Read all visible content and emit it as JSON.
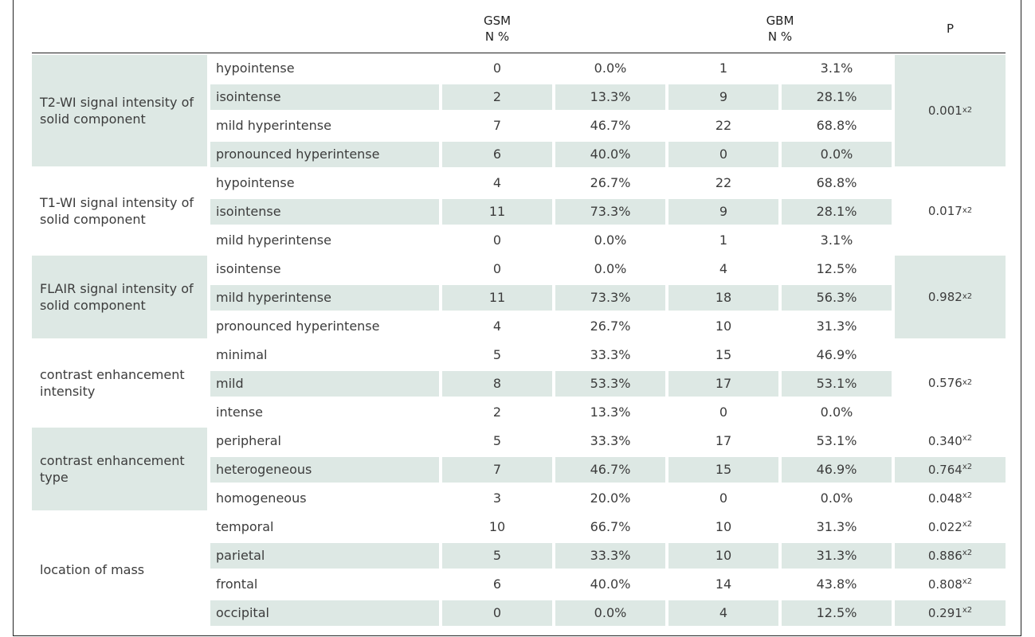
{
  "header": {
    "gsm_title": "GSM",
    "gsm_sub": "N %",
    "gbm_title": "GBM",
    "gbm_sub": "N %",
    "p_title": "P"
  },
  "chi_sup": "x2",
  "groups": [
    {
      "label": "T2-WI signal intensity of solid component",
      "shaded": true,
      "p": "0.001",
      "rows": [
        {
          "label": "hypointense",
          "n1": "0",
          "p1": "0.0%",
          "n2": "1",
          "p2": "3.1%"
        },
        {
          "label": "isointense",
          "n1": "2",
          "p1": "13.3%",
          "n2": "9",
          "p2": "28.1%"
        },
        {
          "label": "mild hyperintense",
          "n1": "7",
          "p1": "46.7%",
          "n2": "22",
          "p2": "68.8%"
        },
        {
          "label": "pronounced hyperintense",
          "n1": "6",
          "p1": "40.0%",
          "n2": "0",
          "p2": "0.0%"
        }
      ]
    },
    {
      "label": "T1-WI signal intensity of solid component",
      "shaded": false,
      "p": "0.017",
      "rows": [
        {
          "label": "hypointense",
          "n1": "4",
          "p1": "26.7%",
          "n2": "22",
          "p2": "68.8%"
        },
        {
          "label": "isointense",
          "n1": "11",
          "p1": "73.3%",
          "n2": "9",
          "p2": "28.1%"
        },
        {
          "label": "mild hyperintense",
          "n1": "0",
          "p1": "0.0%",
          "n2": "1",
          "p2": "3.1%"
        }
      ]
    },
    {
      "label": "FLAIR signal intensity of solid component",
      "shaded": true,
      "p": "0.982",
      "rows": [
        {
          "label": "isointense",
          "n1": "0",
          "p1": "0.0%",
          "n2": "4",
          "p2": "12.5%"
        },
        {
          "label": "mild hyperintense",
          "n1": "11",
          "p1": "73.3%",
          "n2": "18",
          "p2": "56.3%"
        },
        {
          "label": "pronounced hyperintense",
          "n1": "4",
          "p1": "26.7%",
          "n2": "10",
          "p2": "31.3%"
        }
      ]
    },
    {
      "label": "contrast enhancement intensity",
      "shaded": false,
      "p": "0.576",
      "rows": [
        {
          "label": "minimal",
          "n1": "5",
          "p1": "33.3%",
          "n2": "15",
          "p2": "46.9%"
        },
        {
          "label": "mild",
          "n1": "8",
          "p1": "53.3%",
          "n2": "17",
          "p2": "53.1%"
        },
        {
          "label": "intense",
          "n1": "2",
          "p1": "13.3%",
          "n2": "0",
          "p2": "0.0%"
        }
      ]
    },
    {
      "label": "contrast enhancement type",
      "shaded": true,
      "p": null,
      "rows": [
        {
          "label": "peripheral",
          "n1": "5",
          "p1": "33.3%",
          "n2": "17",
          "p2": "53.1%",
          "p": "0.340"
        },
        {
          "label": "heterogeneous",
          "n1": "7",
          "p1": "46.7%",
          "n2": "15",
          "p2": "46.9%",
          "p": "0.764"
        },
        {
          "label": "homogeneous",
          "n1": "3",
          "p1": "20.0%",
          "n2": "0",
          "p2": "0.0%",
          "p": "0.048"
        }
      ]
    },
    {
      "label": "location of mass",
      "shaded": false,
      "p": null,
      "rows": [
        {
          "label": "temporal",
          "n1": "10",
          "p1": "66.7%",
          "n2": "10",
          "p2": "31.3%",
          "p": "0.022"
        },
        {
          "label": "parietal",
          "n1": "5",
          "p1": "33.3%",
          "n2": "10",
          "p2": "31.3%",
          "p": "0.886"
        },
        {
          "label": "frontal",
          "n1": "6",
          "p1": "40.0%",
          "n2": "14",
          "p2": "43.8%",
          "p": "0.808"
        },
        {
          "label": "occipital",
          "n1": "0",
          "p1": "0.0%",
          "n2": "4",
          "p2": "12.5%",
          "p": "0.291"
        }
      ]
    }
  ]
}
